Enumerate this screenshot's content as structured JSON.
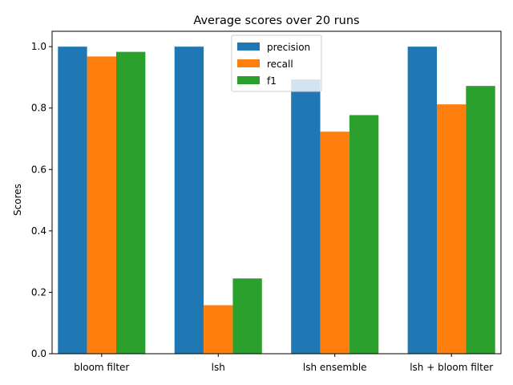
{
  "chart_data": {
    "type": "bar",
    "title": "Average scores over 20 runs",
    "xlabel": "",
    "ylabel": "Scores",
    "categories": [
      "bloom filter",
      "lsh",
      "lsh ensemble",
      "lsh + bloom filter"
    ],
    "series": [
      {
        "name": "precision",
        "color": "#1f77b4",
        "values": [
          1.0,
          1.0,
          0.893,
          1.0
        ]
      },
      {
        "name": "recall",
        "color": "#ff7f0e",
        "values": [
          0.968,
          0.158,
          0.723,
          0.812
        ]
      },
      {
        "name": "f1",
        "color": "#2ca02c",
        "values": [
          0.983,
          0.245,
          0.777,
          0.872
        ]
      }
    ],
    "ylim": [
      0,
      1.05
    ],
    "yticks": [
      "0.0",
      "0.2",
      "0.4",
      "0.6",
      "0.8",
      "1.0"
    ],
    "grid": false,
    "legend": "top-center"
  }
}
